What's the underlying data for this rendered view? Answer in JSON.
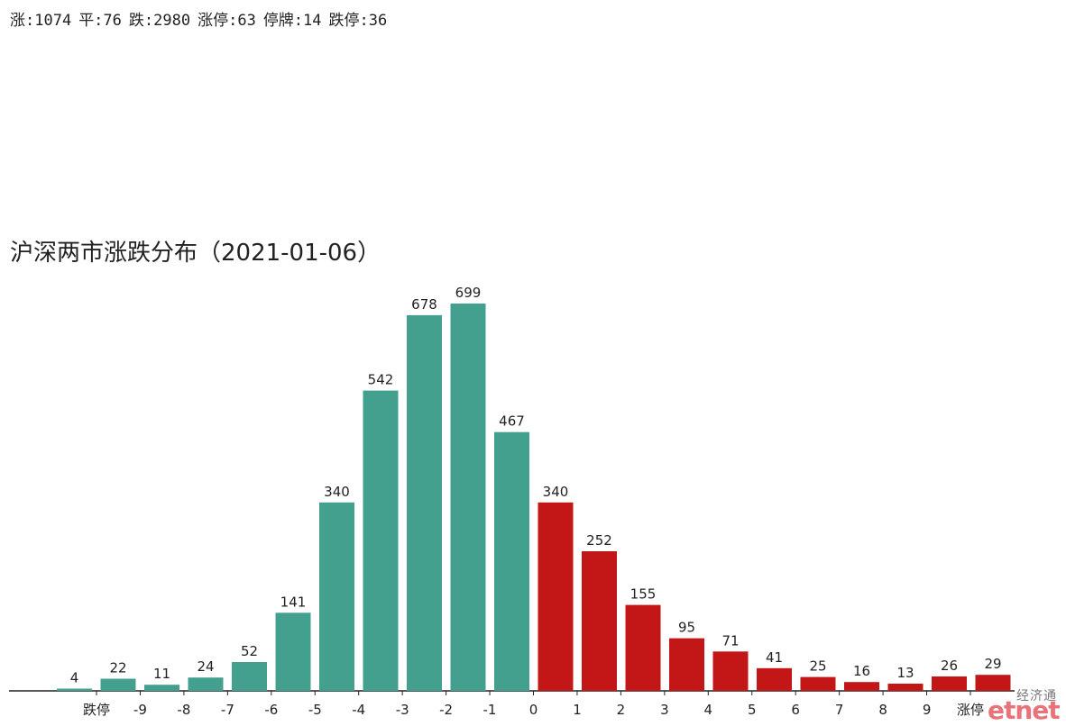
{
  "summary": {
    "up": "涨:1074",
    "flat": "平:76",
    "down": "跌:2980",
    "limit_up": "涨停:63",
    "suspended": "停牌:14",
    "limit_down": "跌停:36"
  },
  "watermark": {
    "cn": "经济通",
    "logo": "etnet"
  },
  "colors": {
    "down": "#43a08e",
    "up": "#c31616",
    "axis": "#222222"
  },
  "chart_data": {
    "type": "bar",
    "title": "沪深两市涨跌分布（2021-01-06）",
    "xlabel": "",
    "ylabel": "",
    "ylim": [
      0,
      730
    ],
    "grid": false,
    "values": [
      4,
      22,
      11,
      24,
      52,
      141,
      340,
      542,
      678,
      699,
      467,
      340,
      252,
      155,
      95,
      71,
      41,
      25,
      16,
      13,
      26,
      29
    ],
    "bar_colors": [
      "down",
      "down",
      "down",
      "down",
      "down",
      "down",
      "down",
      "down",
      "down",
      "down",
      "down",
      "up",
      "up",
      "up",
      "up",
      "up",
      "up",
      "up",
      "up",
      "up",
      "up",
      "up"
    ],
    "tick_labels": [
      "跌停",
      "-9",
      "-8",
      "-7",
      "-6",
      "-5",
      "-4",
      "-3",
      "-2",
      "-1",
      "0",
      "1",
      "2",
      "3",
      "4",
      "5",
      "6",
      "7",
      "8",
      "9",
      "涨停"
    ]
  }
}
